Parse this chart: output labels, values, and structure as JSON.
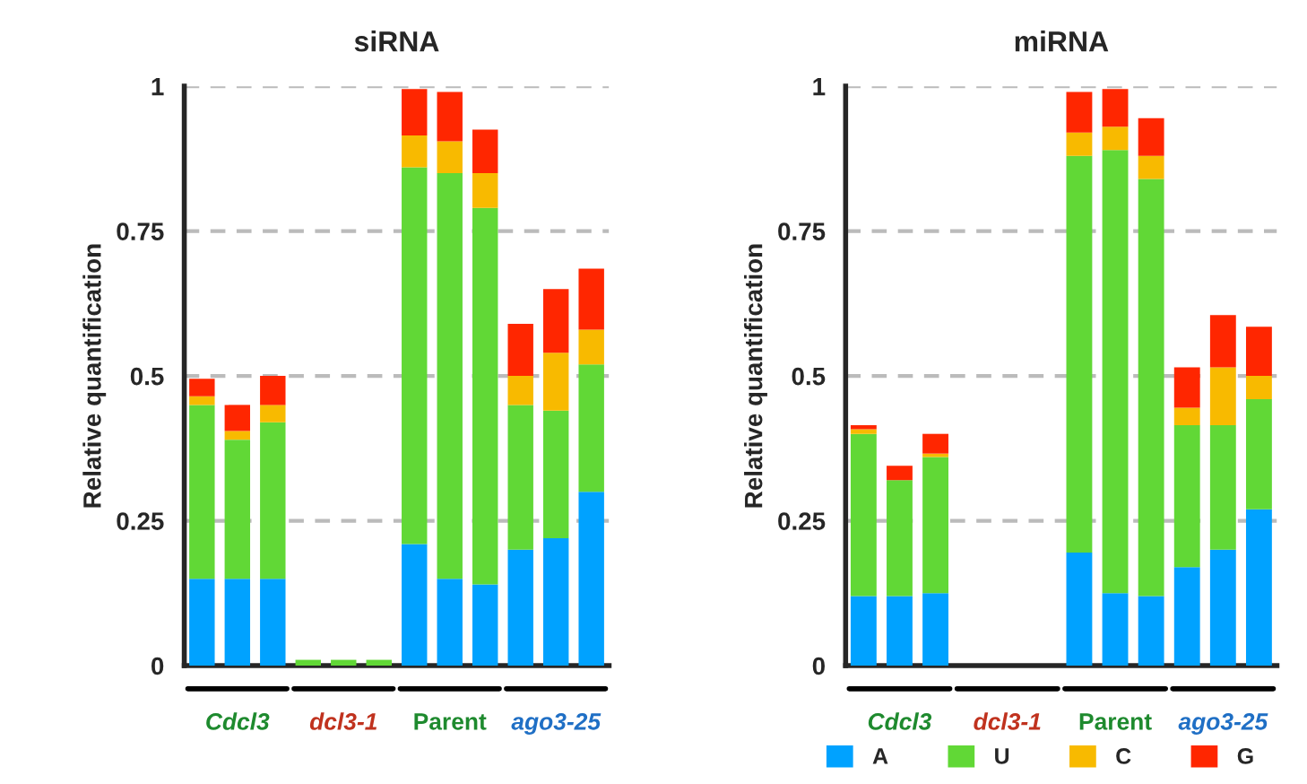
{
  "chart_data": [
    {
      "type": "bar",
      "title": "siRNA",
      "ylabel": "Relative quantification",
      "stacked": true,
      "grid": "y",
      "categories": [
        null,
        null,
        null,
        null,
        null,
        null,
        null,
        null,
        null,
        null,
        null,
        null
      ],
      "series": [
        {
          "color": "#00a2ff",
          "values": [
            0.15,
            0.15,
            0.15,
            0,
            0,
            0,
            0.21,
            0.15,
            0.14,
            0.2,
            0.22,
            0.3
          ]
        },
        {
          "color": "#61d836",
          "values": [
            0.3,
            0.24,
            0.27,
            0.01,
            0.01,
            0.01,
            0.65,
            0.7,
            0.65,
            0.25,
            0.22,
            0.22
          ]
        },
        {
          "color": "#f8ba00",
          "values": [
            0.015,
            0.015,
            0.03,
            0,
            0,
            0,
            0.055,
            0.055,
            0.06,
            0.05,
            0.1,
            0.06
          ]
        },
        {
          "color": "#ff2600",
          "values": [
            0.03,
            0.045,
            0.05,
            0,
            0,
            0,
            0.08,
            0.085,
            0.075,
            0.09,
            0.11,
            0.105
          ]
        }
      ],
      "ylim": [
        0,
        1
      ],
      "yticks": [
        0,
        0.25,
        0.5,
        0.75,
        1
      ],
      "annotations": [
        "Cdcl3",
        "dcl3-1",
        "Parent",
        "ago3-25"
      ]
    },
    {
      "type": "bar",
      "title": "miRNA",
      "ylabel": "Relative quantification",
      "stacked": true,
      "grid": "y",
      "legend": "bottom",
      "categories": [
        null,
        null,
        null,
        null,
        null,
        null,
        null,
        null,
        null,
        null,
        null,
        null
      ],
      "series": [
        {
          "name": "A",
          "color": "#00a2ff",
          "values": [
            0.12,
            0.12,
            0.125,
            0,
            0,
            0,
            0.195,
            0.125,
            0.12,
            0.17,
            0.2,
            0.27
          ]
        },
        {
          "name": "U",
          "color": "#61d836",
          "values": [
            0.28,
            0.2,
            0.235,
            0,
            0,
            0,
            0.685,
            0.765,
            0.72,
            0.245,
            0.215,
            0.19
          ]
        },
        {
          "name": "C",
          "color": "#f8ba00",
          "values": [
            0.008,
            0,
            0.006,
            0,
            0,
            0,
            0.04,
            0.04,
            0.04,
            0.03,
            0.1,
            0.04
          ]
        },
        {
          "name": "G",
          "color": "#ff2600",
          "values": [
            0.007,
            0.025,
            0.034,
            0,
            0,
            0,
            0.07,
            0.065,
            0.065,
            0.07,
            0.09,
            0.085
          ]
        }
      ],
      "ylim": [
        0,
        1
      ],
      "yticks": [
        0,
        0.25,
        0.5,
        0.75,
        1
      ],
      "annotations": [
        "Cdcl3",
        "dcl3-1",
        "Parent",
        "ago3-25"
      ]
    }
  ]
}
